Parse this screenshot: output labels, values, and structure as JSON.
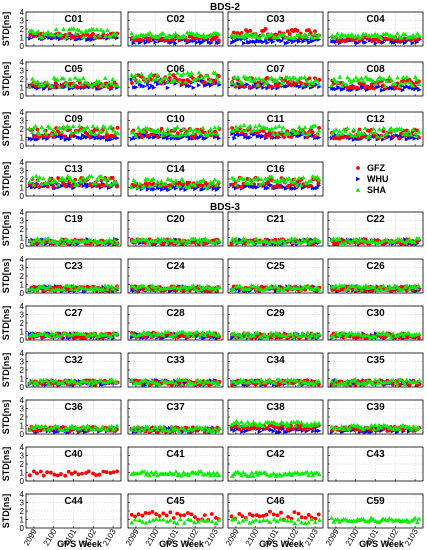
{
  "chart_data": {
    "type": "scatter",
    "section_titles": [
      "BDS-2",
      "BDS-3"
    ],
    "ylabel": "STD[ns]",
    "xlabel": "GPS Week",
    "yticks": [
      0,
      1,
      2,
      3,
      4
    ],
    "ylim": [
      0,
      4
    ],
    "xticks": [
      2099,
      2100,
      2101,
      2102,
      2103
    ],
    "xlim": [
      2098.6,
      2103.4
    ],
    "grid": true,
    "legend": {
      "placement": "empty panel of BDS-2 row 4",
      "entries": [
        {
          "name": "GFZ",
          "color": "#ff0000",
          "marker": "circle"
        },
        {
          "name": "WHU",
          "color": "#0000ff",
          "marker": "triangle-right"
        },
        {
          "name": "SHA",
          "color": "#00ee00",
          "marker": "triangle-up"
        }
      ]
    },
    "panels": [
      {
        "title": "C01",
        "system": "BDS-2",
        "approx_level": {
          "GFZ": 1.2,
          "WHU": 1.0,
          "SHA": 1.5
        }
      },
      {
        "title": "C02",
        "system": "BDS-2",
        "approx_level": {
          "GFZ": 0.9,
          "WHU": 0.6,
          "SHA": 1.3
        }
      },
      {
        "title": "C03",
        "system": "BDS-2",
        "approx_level": {
          "GFZ": 1.5,
          "WHU": 0.6,
          "SHA": 1.2
        }
      },
      {
        "title": "C04",
        "system": "BDS-2",
        "approx_level": {
          "GFZ": 0.8,
          "WHU": 0.6,
          "SHA": 1.2
        }
      },
      {
        "title": "C05",
        "system": "BDS-2",
        "approx_level": {
          "GFZ": 1.3,
          "WHU": 1.1,
          "SHA": 1.6
        }
      },
      {
        "title": "C06",
        "system": "BDS-2",
        "approx_level": {
          "GFZ": 2.0,
          "WHU": 1.5,
          "SHA": 2.2
        }
      },
      {
        "title": "C07",
        "system": "BDS-2",
        "approx_level": {
          "GFZ": 1.6,
          "WHU": 1.2,
          "SHA": 1.8
        }
      },
      {
        "title": "C08",
        "system": "BDS-2",
        "approx_level": {
          "GFZ": 1.4,
          "WHU": 0.9,
          "SHA": 1.7
        }
      },
      {
        "title": "C09",
        "system": "BDS-2",
        "approx_level": {
          "GFZ": 1.6,
          "WHU": 1.0,
          "SHA": 1.8
        }
      },
      {
        "title": "C10",
        "system": "BDS-2",
        "approx_level": {
          "GFZ": 1.5,
          "WHU": 1.1,
          "SHA": 1.7
        }
      },
      {
        "title": "C11",
        "system": "BDS-2",
        "approx_level": {
          "GFZ": 1.6,
          "WHU": 1.2,
          "SHA": 1.9
        }
      },
      {
        "title": "C12",
        "system": "BDS-2",
        "approx_level": {
          "GFZ": 1.4,
          "WHU": 1.0,
          "SHA": 1.6
        }
      },
      {
        "title": "C13",
        "system": "BDS-2",
        "approx_level": {
          "GFZ": 1.6,
          "WHU": 1.2,
          "SHA": 1.8
        }
      },
      {
        "title": "C14",
        "system": "BDS-2",
        "approx_level": {
          "GFZ": 1.3,
          "WHU": 1.0,
          "SHA": 1.5
        }
      },
      {
        "title": "C16",
        "system": "BDS-2",
        "approx_level": {
          "GFZ": 1.6,
          "WHU": 1.1,
          "SHA": 1.8
        }
      },
      {
        "title": "C19",
        "system": "BDS-3",
        "approx_level": {
          "GFZ": 0.5,
          "WHU": 0.5,
          "SHA": 0.6
        }
      },
      {
        "title": "C20",
        "system": "BDS-3",
        "approx_level": {
          "GFZ": 0.5,
          "WHU": 0.5,
          "SHA": 0.6
        }
      },
      {
        "title": "C21",
        "system": "BDS-3",
        "approx_level": {
          "GFZ": 0.5,
          "WHU": 0.5,
          "SHA": 0.6
        }
      },
      {
        "title": "C22",
        "system": "BDS-3",
        "approx_level": {
          "GFZ": 0.5,
          "WHU": 0.5,
          "SHA": 0.6
        }
      },
      {
        "title": "C23",
        "system": "BDS-3",
        "approx_level": {
          "GFZ": 0.5,
          "WHU": 0.5,
          "SHA": 0.6
        }
      },
      {
        "title": "C24",
        "system": "BDS-3",
        "approx_level": {
          "GFZ": 0.5,
          "WHU": 0.5,
          "SHA": 0.6
        }
      },
      {
        "title": "C25",
        "system": "BDS-3",
        "approx_level": {
          "GFZ": 0.5,
          "WHU": 0.5,
          "SHA": 0.6
        }
      },
      {
        "title": "C26",
        "system": "BDS-3",
        "approx_level": {
          "GFZ": 0.5,
          "WHU": 0.5,
          "SHA": 0.6
        }
      },
      {
        "title": "C27",
        "system": "BDS-3",
        "approx_level": {
          "GFZ": 0.5,
          "WHU": 0.5,
          "SHA": 0.6
        }
      },
      {
        "title": "C28",
        "system": "BDS-3",
        "approx_level": {
          "GFZ": 0.6,
          "WHU": 0.5,
          "SHA": 0.7
        }
      },
      {
        "title": "C29",
        "system": "BDS-3",
        "approx_level": {
          "GFZ": 0.5,
          "WHU": 0.5,
          "SHA": 0.6
        }
      },
      {
        "title": "C30",
        "system": "BDS-3",
        "approx_level": {
          "GFZ": 0.5,
          "WHU": 0.5,
          "SHA": 0.6
        }
      },
      {
        "title": "C32",
        "system": "BDS-3",
        "approx_level": {
          "GFZ": 0.5,
          "WHU": 0.5,
          "SHA": 0.6
        }
      },
      {
        "title": "C33",
        "system": "BDS-3",
        "approx_level": {
          "GFZ": 0.5,
          "WHU": 0.5,
          "SHA": 0.6
        }
      },
      {
        "title": "C34",
        "system": "BDS-3",
        "approx_level": {
          "GFZ": 0.5,
          "WHU": 0.5,
          "SHA": 0.6
        }
      },
      {
        "title": "C35",
        "system": "BDS-3",
        "approx_level": {
          "GFZ": 0.5,
          "WHU": 0.5,
          "SHA": 0.6
        }
      },
      {
        "title": "C36",
        "system": "BDS-3",
        "approx_level": {
          "GFZ": 0.6,
          "WHU": 0.5,
          "SHA": 0.7
        }
      },
      {
        "title": "C37",
        "system": "BDS-3",
        "approx_level": {
          "GFZ": 0.5,
          "WHU": 0.5,
          "SHA": 0.6
        }
      },
      {
        "title": "C38",
        "system": "BDS-3",
        "approx_level": {
          "GFZ": 0.8,
          "WHU": 0.5,
          "SHA": 1.2
        }
      },
      {
        "title": "C39",
        "system": "BDS-3",
        "approx_level": {
          "GFZ": 0.6,
          "WHU": 0.5,
          "SHA": 0.8
        }
      },
      {
        "title": "C40",
        "system": "BDS-3",
        "approx_level": {
          "GFZ": 0.9,
          "WHU": null,
          "SHA": null
        }
      },
      {
        "title": "C41",
        "system": "BDS-3",
        "approx_level": {
          "GFZ": null,
          "WHU": null,
          "SHA": 0.9
        }
      },
      {
        "title": "C42",
        "system": "BDS-3",
        "approx_level": {
          "GFZ": null,
          "WHU": null,
          "SHA": 0.8
        }
      },
      {
        "title": "C43",
        "system": "BDS-3",
        "approx_level": {
          "GFZ": null,
          "WHU": null,
          "SHA": null
        }
      },
      {
        "title": "C44",
        "system": "BDS-3",
        "approx_level": {
          "GFZ": null,
          "WHU": null,
          "SHA": null
        }
      },
      {
        "title": "C45",
        "system": "BDS-3",
        "approx_level": {
          "GFZ": 1.4,
          "WHU": null,
          "SHA": 0.8
        }
      },
      {
        "title": "C46",
        "system": "BDS-3",
        "approx_level": {
          "GFZ": 1.4,
          "WHU": null,
          "SHA": 0.8
        }
      },
      {
        "title": "C59",
        "system": "BDS-3",
        "approx_level": {
          "GFZ": null,
          "WHU": null,
          "SHA": 0.9
        }
      }
    ]
  }
}
